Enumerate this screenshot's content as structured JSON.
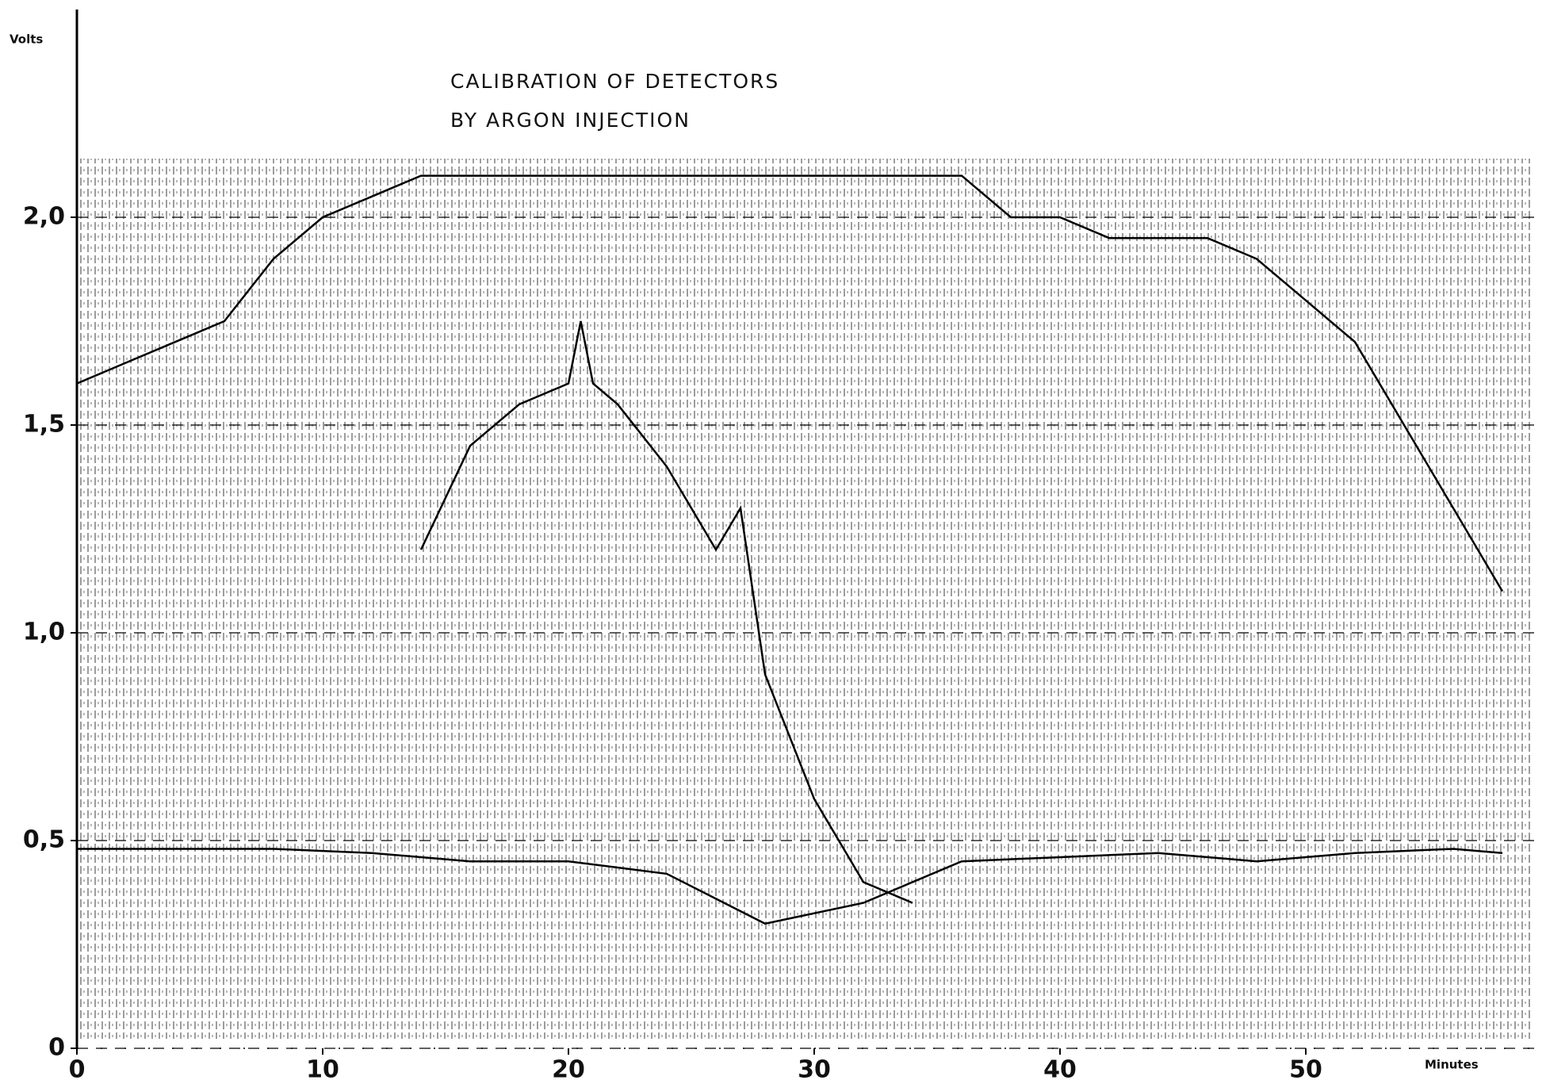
{
  "chart_data": {
    "type": "line",
    "title": "CALIBRATION OF DETECTORS",
    "subtitle": "BY ARGON INJECTION",
    "y_label": "Volts",
    "x_label": "Minutes",
    "xlim": [
      0,
      60
    ],
    "xticks": [
      0,
      10,
      20,
      30,
      40,
      50
    ],
    "ylim": [
      0,
      2.5
    ],
    "yticks": [
      0,
      {
        "value": 0.5,
        "label": "0,5"
      },
      {
        "value": 1.0,
        "label": "1,0"
      },
      {
        "value": 1.5,
        "label": "1,5"
      },
      {
        "value": 2.0,
        "label": "2,0"
      }
    ],
    "series": [
      {
        "color": "#000000",
        "x": [
          0,
          2,
          4,
          6,
          8,
          10,
          12,
          14,
          16,
          18,
          20,
          22,
          24,
          26,
          28,
          30,
          32,
          34,
          36,
          38,
          40,
          42,
          44,
          46,
          48,
          50,
          52,
          54,
          56,
          58
        ],
        "values": [
          1.6,
          1.65,
          1.7,
          1.75,
          1.9,
          2.0,
          2.05,
          2.1,
          2.1,
          2.1,
          2.1,
          2.1,
          2.1,
          2.1,
          2.1,
          2.1,
          2.1,
          2.1,
          2.1,
          2.0,
          2.0,
          1.95,
          1.95,
          1.95,
          1.9,
          1.8,
          1.7,
          1.5,
          1.3,
          1.1
        ]
      },
      {
        "color": "#000000",
        "x": [
          14,
          16,
          18,
          20,
          20.5,
          21,
          22,
          24,
          26,
          27,
          28,
          30,
          32,
          34
        ],
        "values": [
          1.2,
          1.45,
          1.55,
          1.6,
          1.75,
          1.6,
          1.55,
          1.4,
          1.2,
          1.3,
          0.9,
          0.6,
          0.4,
          0.35
        ]
      },
      {
        "color": "#000000",
        "x": [
          0,
          4,
          8,
          12,
          16,
          20,
          24,
          28,
          32,
          36,
          40,
          44,
          48,
          52,
          56,
          58
        ],
        "values": [
          0.48,
          0.48,
          0.48,
          0.47,
          0.45,
          0.45,
          0.42,
          0.3,
          0.35,
          0.45,
          0.46,
          0.47,
          0.45,
          0.47,
          0.48,
          0.47
        ]
      }
    ]
  }
}
